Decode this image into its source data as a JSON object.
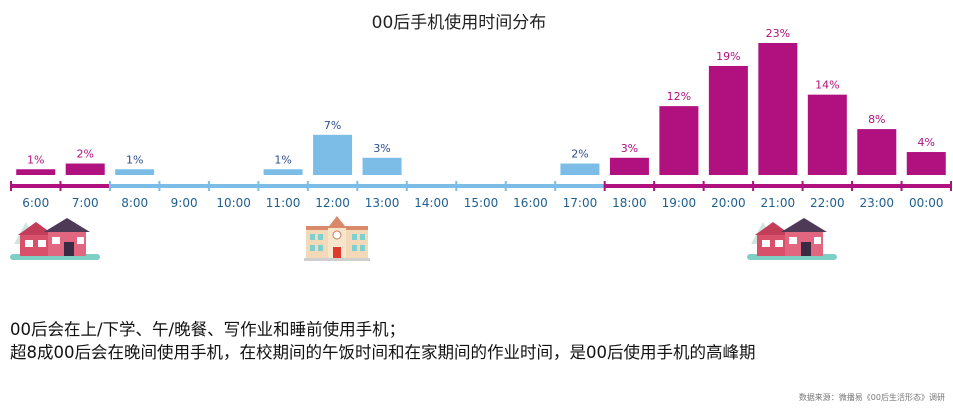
{
  "chart_data": {
    "type": "bar",
    "title": "00后手机使用时间分布",
    "categories": [
      "6:00",
      "7:00",
      "8:00",
      "9:00",
      "10:00",
      "11:00",
      "12:00",
      "13:00",
      "14:00",
      "15:00",
      "16:00",
      "17:00",
      "18:00",
      "19:00",
      "20:00",
      "21:00",
      "22:00",
      "23:00",
      "00:00"
    ],
    "values": [
      1,
      2,
      1,
      null,
      null,
      1,
      7,
      3,
      null,
      null,
      null,
      2,
      3,
      12,
      19,
      23,
      14,
      8,
      4
    ],
    "value_labels": [
      "1%",
      "2%",
      "1%",
      "",
      "",
      "1%",
      "7%",
      "3%",
      "",
      "",
      "",
      "2%",
      "3%",
      "12%",
      "19%",
      "23%",
      "14%",
      "8%",
      "4%"
    ],
    "periods": [
      "home",
      "home",
      "school",
      "school",
      "school",
      "school",
      "school",
      "school",
      "school",
      "school",
      "school",
      "school",
      "home",
      "home",
      "home",
      "home",
      "home",
      "home",
      "home"
    ],
    "ylim": [
      0,
      23
    ],
    "xlabel": "",
    "ylabel": "",
    "grid": false,
    "legend": "none",
    "colors": {
      "home": "#b0117f",
      "school": "#7bbde6",
      "home_label": "#b0117f",
      "school_label": "#2b4f8e",
      "tick_label": "#1f5f8f"
    },
    "icons": [
      "house-icon",
      "school-icon",
      "house-icon"
    ]
  },
  "description": {
    "line1": "00后会在上/下学、午/晚餐、写作业和睡前使用手机；",
    "line2": "超8成00后会在晚间使用手机，在校期间的午饭时间和在家期间的作业时间，是00后使用手机的高峰期"
  },
  "source": "数据来源：微播易《00后生活形态》调研"
}
